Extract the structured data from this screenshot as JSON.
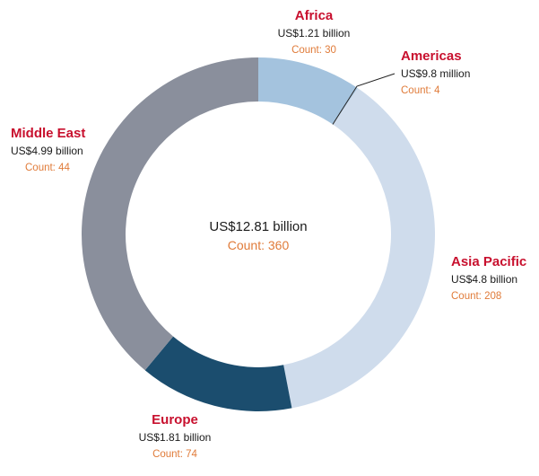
{
  "colors": {
    "label_name": "#c8102e",
    "label_value": "#1a1a1a",
    "label_count": "#e07b39",
    "connector": "#222222"
  },
  "chart_data": {
    "type": "pie",
    "subtype": "donut",
    "center": {
      "value_label": "US$12.81 billion",
      "count_label": "Count: 360"
    },
    "slices": [
      {
        "name": "Africa",
        "value": 1.21,
        "value_label": "US$1.21 billion",
        "count": 30,
        "count_label": "Count: 30",
        "color": "#a4c3de"
      },
      {
        "name": "Americas",
        "value": 0.0098,
        "value_label": "US$9.8 million",
        "count": 4,
        "count_label": "Count: 4",
        "color": "#a4c3de"
      },
      {
        "name": "Asia Pacific",
        "value": 4.8,
        "value_label": "US$4.8 billion",
        "count": 208,
        "count_label": "Count: 208",
        "color": "#cfdcec"
      },
      {
        "name": "Europe",
        "value": 1.81,
        "value_label": "US$1.81 billion",
        "count": 74,
        "count_label": "Count: 74",
        "color": "#1b4d6e"
      },
      {
        "name": "Middle East",
        "value": 4.99,
        "value_label": "US$4.99 billion",
        "count": 44,
        "count_label": "Count: 44",
        "color": "#8a8f9c"
      }
    ],
    "legend": "none"
  }
}
